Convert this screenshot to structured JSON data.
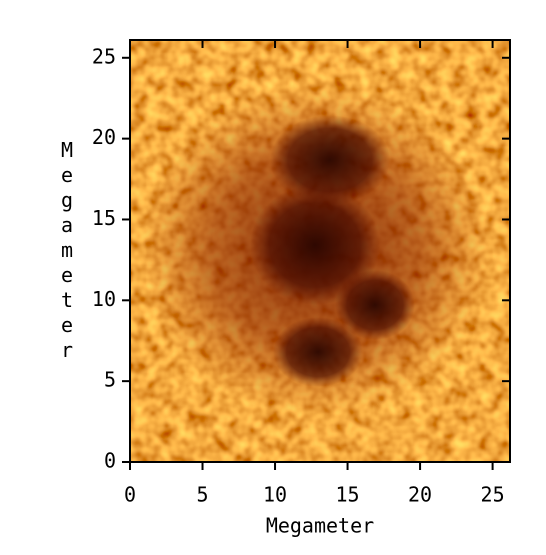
{
  "chart_data": {
    "type": "image",
    "xlabel": "Megameter",
    "ylabel": "Megameter",
    "xlim": [
      0,
      26.2
    ],
    "ylim": [
      0,
      26.1
    ],
    "xticks": [
      0,
      5,
      10,
      15,
      20,
      25
    ],
    "yticks": [
      0,
      5,
      10,
      15,
      20,
      25
    ]
  }
}
